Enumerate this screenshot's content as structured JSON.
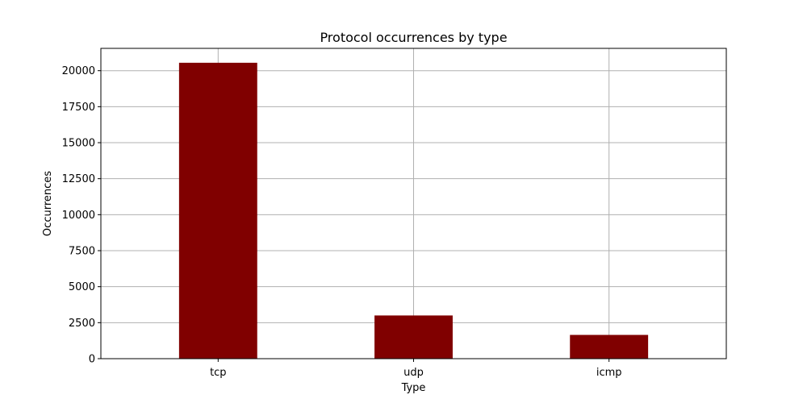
{
  "chart_data": {
    "type": "bar",
    "title": "Protocol occurrences by type",
    "xlabel": "Type",
    "ylabel": "Occurrences",
    "categories": [
      "tcp",
      "udp",
      "icmp"
    ],
    "values": [
      20550,
      3000,
      1650
    ],
    "ylim": [
      0,
      21550
    ],
    "yticks": [
      0,
      2500,
      5000,
      7500,
      10000,
      12500,
      15000,
      17500,
      20000
    ],
    "grid": true,
    "bar_color": "#800000"
  }
}
